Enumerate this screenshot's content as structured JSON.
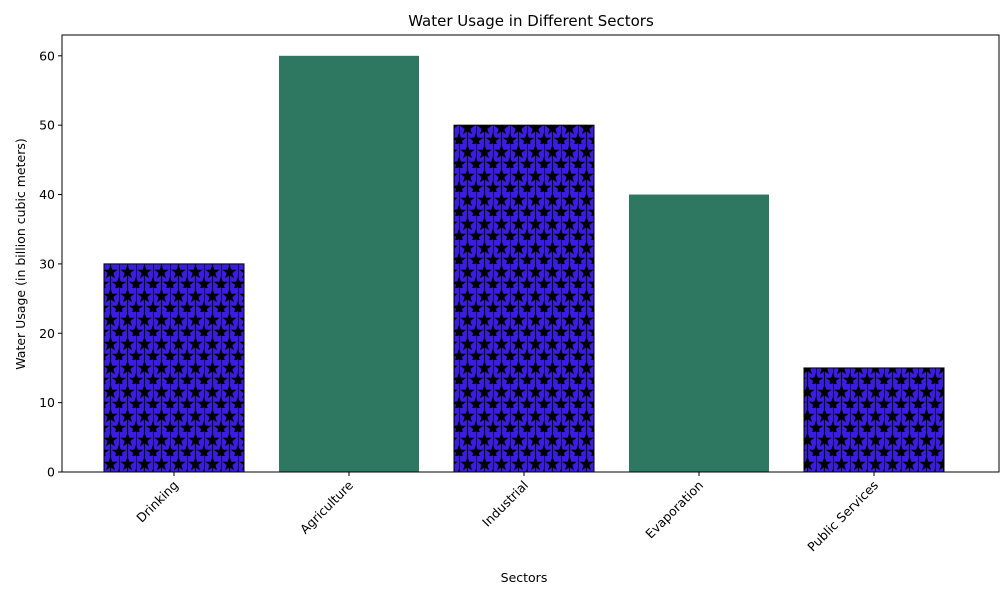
{
  "chart_data": {
    "type": "bar",
    "title": "Water Usage in Different Sectors",
    "xlabel": "Sectors",
    "ylabel": "Water Usage (in billion cubic meters)",
    "categories": [
      "Drinking",
      "Agriculture",
      "Industrial",
      "Evaporation",
      "Public Services"
    ],
    "values": [
      30,
      60,
      50,
      40,
      15
    ],
    "ylim": [
      0,
      63
    ],
    "yticks": [
      0,
      10,
      20,
      30,
      40,
      50,
      60
    ],
    "grid": false,
    "bar_styles": [
      "star-hatch",
      "solid",
      "star-hatch",
      "solid",
      "star-hatch"
    ],
    "colors": {
      "hatch_fill": "#3a1ee0",
      "hatch_mark": "#000000",
      "solid_fill": "#2e7861",
      "axis": "#000000"
    }
  }
}
